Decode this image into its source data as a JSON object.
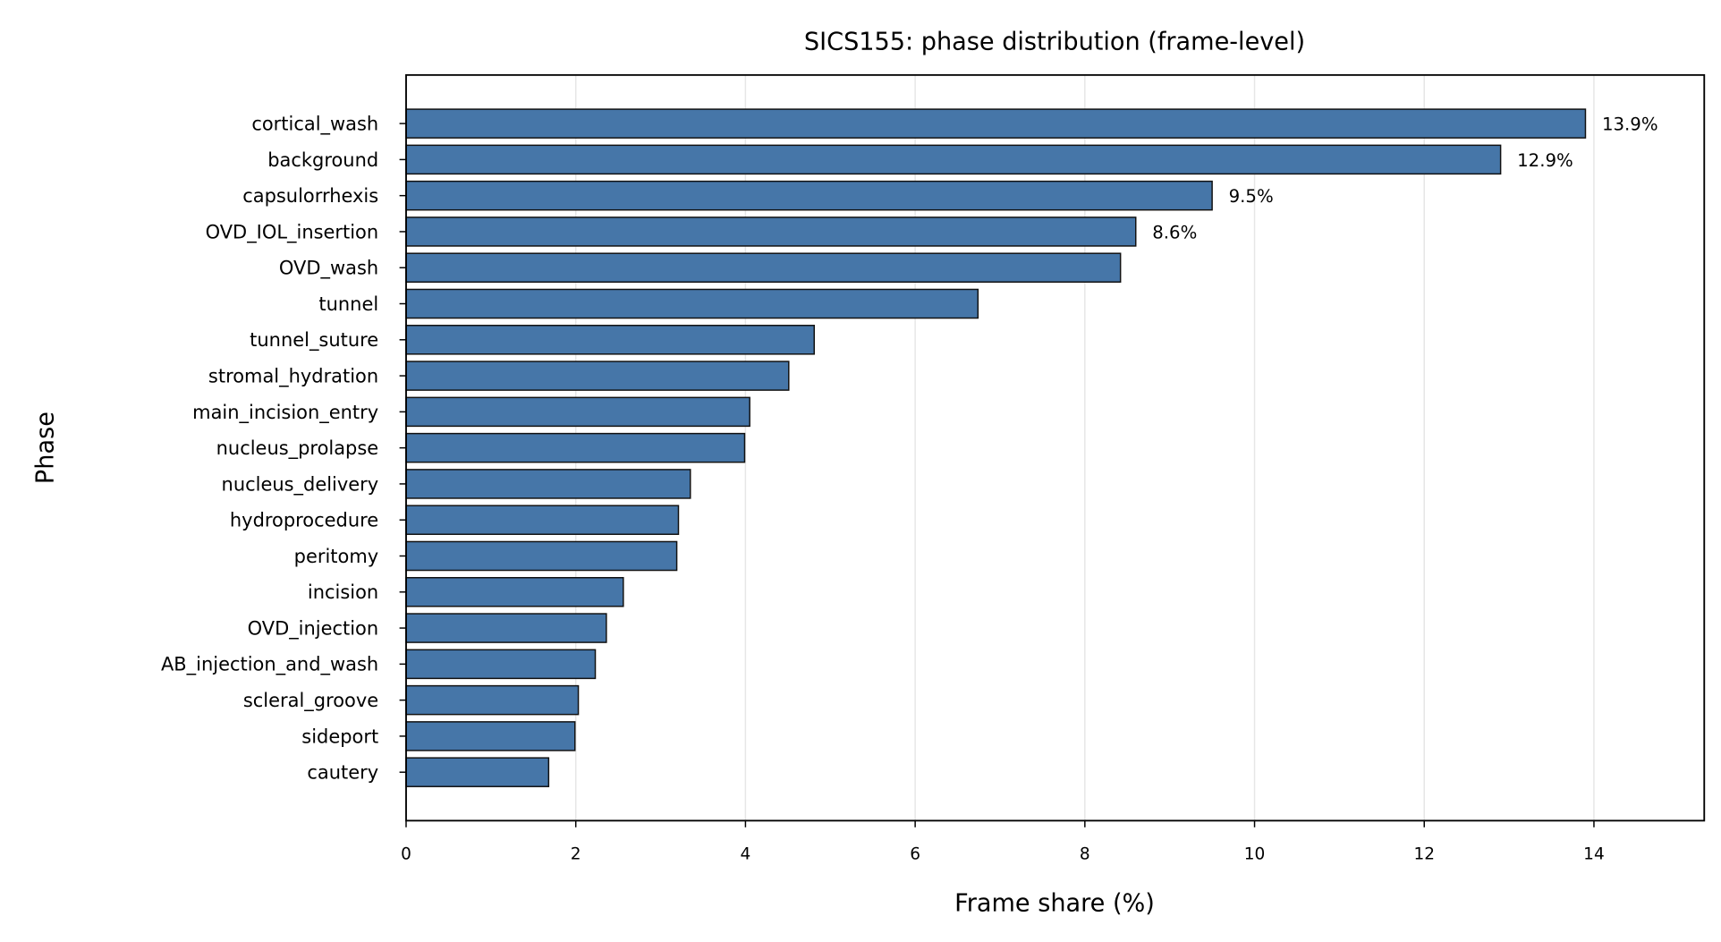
{
  "chart_data": {
    "type": "bar",
    "orientation": "horizontal",
    "title": "SICS155: phase distribution (frame-level)",
    "xlabel": "Frame share (%)",
    "ylabel": "Phase",
    "xlim": [
      0,
      15.3
    ],
    "xticks": [
      0,
      2,
      4,
      6,
      8,
      10,
      12,
      14
    ],
    "grid": "vertical",
    "bar_color": "#4676a8",
    "categories": [
      "cortical_wash",
      "background",
      "capsulorrhexis",
      "OVD_IOL_insertion",
      "OVD_wash",
      "tunnel",
      "tunnel_suture",
      "stromal_hydration",
      "main_incision_entry",
      "nucleus_prolapse",
      "nucleus_delivery",
      "hydroprocedure",
      "peritomy",
      "incision",
      "OVD_injection",
      "AB_injection_and_wash",
      "scleral_groove",
      "sideport",
      "cautery"
    ],
    "values": [
      13.9,
      12.9,
      9.5,
      8.6,
      8.42,
      6.74,
      4.81,
      4.51,
      4.05,
      3.99,
      3.35,
      3.21,
      3.19,
      2.56,
      2.36,
      2.23,
      2.03,
      1.99,
      1.68
    ],
    "data_labels": [
      "13.9%",
      "12.9%",
      "9.5%",
      "8.6%",
      null,
      null,
      null,
      null,
      null,
      null,
      null,
      null,
      null,
      null,
      null,
      null,
      null,
      null,
      null
    ]
  }
}
